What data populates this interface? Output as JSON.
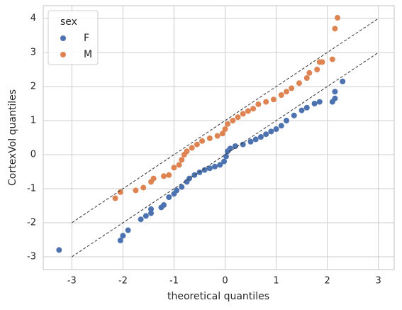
{
  "chart_data": {
    "type": "scatter",
    "x_label": "theoretical quantiles",
    "y_label": "CortexVol quantiles",
    "xlim": [
      -3.56,
      3.31
    ],
    "ylim": [
      -3.375,
      4.375
    ],
    "xticks": [
      -3,
      -2,
      -1,
      0,
      1,
      2,
      3
    ],
    "yticks": [
      -3,
      -2,
      -1,
      0,
      1,
      2,
      3,
      4
    ],
    "grid": true,
    "legend_title": "sex",
    "legend_position": "upper left",
    "series": [
      {
        "name": "F",
        "color": "#4c72b0",
        "x": [
          -3.25,
          -2.05,
          -2.0,
          -1.9,
          -1.65,
          -1.55,
          -1.45,
          -1.45,
          -1.25,
          -1.2,
          -1.1,
          -1.0,
          -0.95,
          -0.85,
          -0.75,
          -0.7,
          -0.6,
          -0.5,
          -0.4,
          -0.3,
          -0.2,
          -0.1,
          -0.02,
          0.02,
          0.05,
          0.1,
          0.2,
          0.35,
          0.5,
          0.6,
          0.7,
          0.8,
          0.9,
          1.0,
          1.1,
          1.2,
          1.35,
          1.5,
          1.6,
          1.75,
          1.85,
          2.1,
          2.15,
          2.15,
          2.3
        ],
        "values": [
          -2.8,
          -2.52,
          -2.38,
          -2.22,
          -1.9,
          -1.8,
          -1.72,
          -1.6,
          -1.55,
          -1.48,
          -1.25,
          -1.15,
          -1.05,
          -0.95,
          -0.8,
          -0.7,
          -0.6,
          -0.52,
          -0.45,
          -0.4,
          -0.35,
          -0.3,
          -0.2,
          -0.05,
          0.1,
          0.18,
          0.25,
          0.3,
          0.38,
          0.45,
          0.52,
          0.6,
          0.68,
          0.75,
          0.85,
          1.0,
          1.15,
          1.3,
          1.38,
          1.5,
          1.55,
          1.55,
          1.65,
          1.85,
          2.15
        ]
      },
      {
        "name": "M",
        "color": "#dd8452",
        "x": [
          -2.15,
          -2.05,
          -1.75,
          -1.6,
          -1.45,
          -1.4,
          -1.2,
          -1.1,
          -1.0,
          -0.9,
          -0.85,
          -0.8,
          -0.75,
          -0.65,
          -0.55,
          -0.45,
          -0.3,
          -0.15,
          -0.05,
          0.0,
          0.05,
          0.15,
          0.25,
          0.35,
          0.45,
          0.55,
          0.65,
          0.8,
          0.95,
          1.1,
          1.2,
          1.3,
          1.45,
          1.6,
          1.65,
          1.8,
          1.85,
          1.9,
          2.1,
          2.15,
          2.2
        ],
        "values": [
          -1.28,
          -1.1,
          -1.05,
          -0.97,
          -0.8,
          -0.7,
          -0.63,
          -0.6,
          -0.38,
          -0.3,
          -0.15,
          0.0,
          0.1,
          0.2,
          0.3,
          0.4,
          0.48,
          0.55,
          0.62,
          0.75,
          0.9,
          1.0,
          1.1,
          1.2,
          1.28,
          1.35,
          1.48,
          1.55,
          1.62,
          1.75,
          1.85,
          1.95,
          2.1,
          2.25,
          2.4,
          2.5,
          2.72,
          2.72,
          2.8,
          3.7,
          4.02
        ]
      }
    ],
    "reference_lines": [
      {
        "color": "#333333",
        "x": [
          -3,
          3
        ],
        "y": [
          -2,
          4
        ]
      },
      {
        "color": "#333333",
        "x": [
          -3,
          3
        ],
        "y": [
          -3,
          3
        ]
      }
    ]
  }
}
